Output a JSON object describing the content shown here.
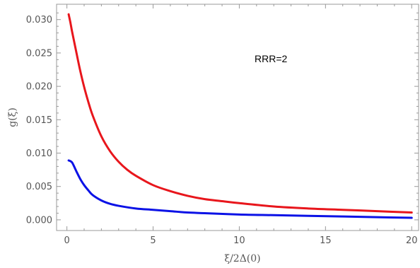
{
  "chart_data": {
    "type": "line",
    "xlabel": "ξ/2Δ(0)",
    "ylabel": "g(ξ)",
    "annotation": "RRR=2",
    "xlim": [
      -0.6,
      20.4
    ],
    "ylim": [
      -0.0016,
      0.0323
    ],
    "xticks": [
      0,
      5,
      10,
      15,
      20
    ],
    "xtick_labels": [
      "0",
      "5",
      "10",
      "15",
      "20"
    ],
    "yticks": [
      0.0,
      0.005,
      0.01,
      0.015,
      0.02,
      0.025,
      0.03
    ],
    "ytick_labels": [
      "0.000",
      "0.005",
      "0.010",
      "0.015",
      "0.020",
      "0.025",
      "0.030"
    ],
    "grid": false,
    "legend": "none",
    "series": [
      {
        "color": "#e8161c",
        "x": [
          0.1,
          0.2,
          0.3,
          0.5,
          0.75,
          1.0,
          1.25,
          1.5,
          2.0,
          2.5,
          3.0,
          3.5,
          4.0,
          5.0,
          6.0,
          7.0,
          8.0,
          9.0,
          10.0,
          12.0,
          14.0,
          16.0,
          18.0,
          20.0
        ],
        "y": [
          0.0308,
          0.0296,
          0.0282,
          0.0257,
          0.0226,
          0.0199,
          0.0176,
          0.0156,
          0.0125,
          0.0103,
          0.0087,
          0.0075,
          0.0066,
          0.0052,
          0.0043,
          0.0036,
          0.0031,
          0.0028,
          0.0025,
          0.002,
          0.0017,
          0.0015,
          0.0013,
          0.0011
        ]
      },
      {
        "color": "#0b12e6",
        "x": [
          0.1,
          0.2,
          0.3,
          0.4,
          0.6,
          0.8,
          1.0,
          1.25,
          1.5,
          2.0,
          2.5,
          3.0,
          4.0,
          5.0,
          6.0,
          7.0,
          8.0,
          10.0,
          12.0,
          14.0,
          16.0,
          18.0,
          20.0
        ],
        "y": [
          0.0089,
          0.0088,
          0.0086,
          0.0081,
          0.007,
          0.006,
          0.0052,
          0.0044,
          0.0037,
          0.0029,
          0.0024,
          0.0021,
          0.0017,
          0.0015,
          0.0013,
          0.0011,
          0.001,
          0.0008,
          0.0007,
          0.0006,
          0.0005,
          0.0004,
          0.0003
        ]
      }
    ]
  }
}
